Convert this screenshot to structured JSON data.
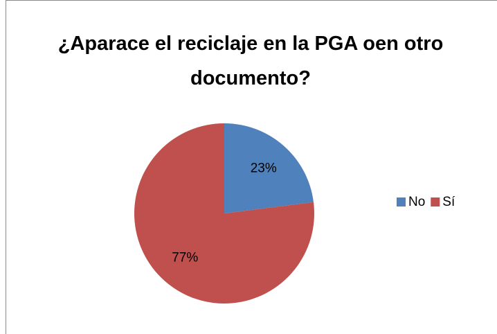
{
  "chart_data": {
    "type": "pie",
    "title": "¿Aparace el reciclaje en la PGA oen otro documento?",
    "categories": [
      "No",
      "Sí"
    ],
    "values": [
      23,
      77
    ],
    "value_labels": [
      "23%",
      "77%"
    ],
    "colors": [
      "#4f81bd",
      "#c0504d"
    ],
    "legend": "right"
  }
}
